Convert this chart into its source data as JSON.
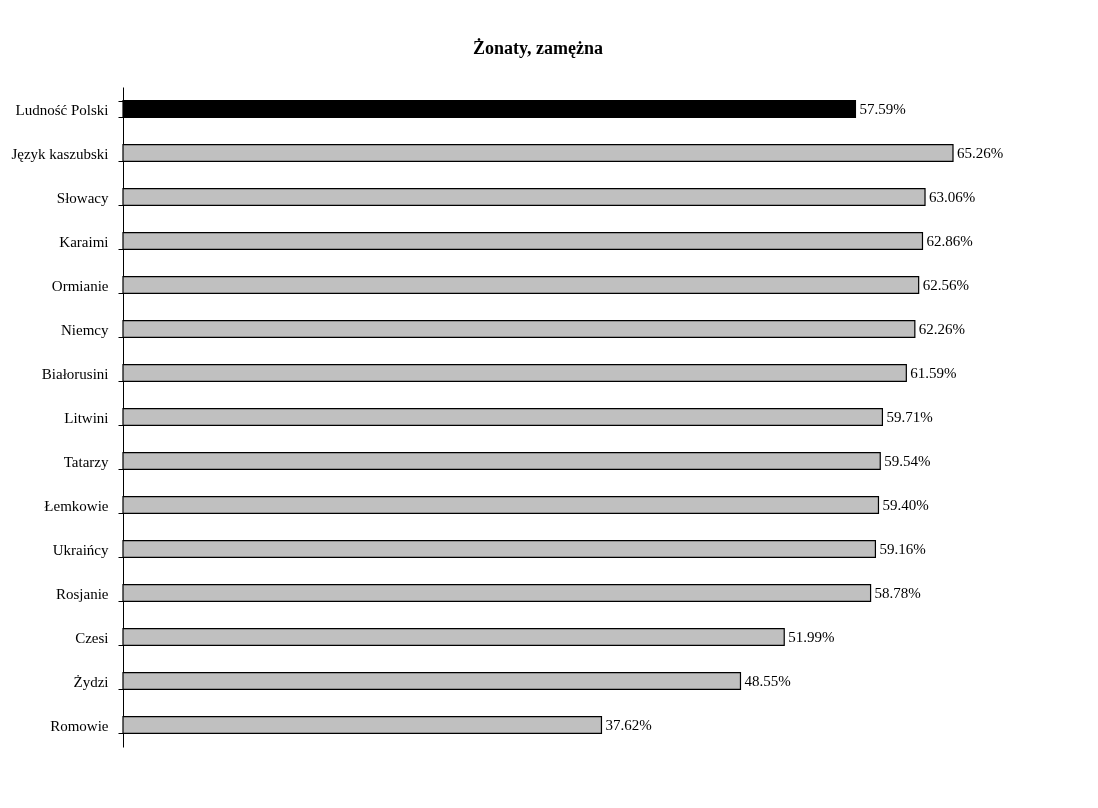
{
  "chart_data": {
    "type": "bar",
    "orientation": "horizontal",
    "title": "Żonaty, zamężna",
    "categories": [
      "Ludność Polski",
      "Język kaszubski",
      "Słowacy",
      "Karaimi",
      "Ormianie",
      "Niemcy",
      "Białorusini",
      "Litwini",
      "Tatarzy",
      "Łemkowie",
      "Ukraińcy",
      "Rosjanie",
      "Czesi",
      "Żydzi",
      "Romowie"
    ],
    "values": [
      57.59,
      65.26,
      63.06,
      62.86,
      62.56,
      62.26,
      61.59,
      59.71,
      59.54,
      59.4,
      59.16,
      58.78,
      51.99,
      48.55,
      37.62
    ],
    "value_labels": [
      "57.59%",
      "65.26%",
      "63.06%",
      "62.86%",
      "62.56%",
      "62.26%",
      "61.59%",
      "59.71%",
      "59.54%",
      "59.40%",
      "59.16%",
      "58.78%",
      "51.99%",
      "48.55%",
      "37.62%"
    ],
    "colors": [
      "#000000",
      "#c0c0c0",
      "#c0c0c0",
      "#c0c0c0",
      "#c0c0c0",
      "#c0c0c0",
      "#c0c0c0",
      "#c0c0c0",
      "#c0c0c0",
      "#c0c0c0",
      "#c0c0c0",
      "#c0c0c0",
      "#c0c0c0",
      "#c0c0c0",
      "#c0c0c0"
    ],
    "grid": false
  }
}
